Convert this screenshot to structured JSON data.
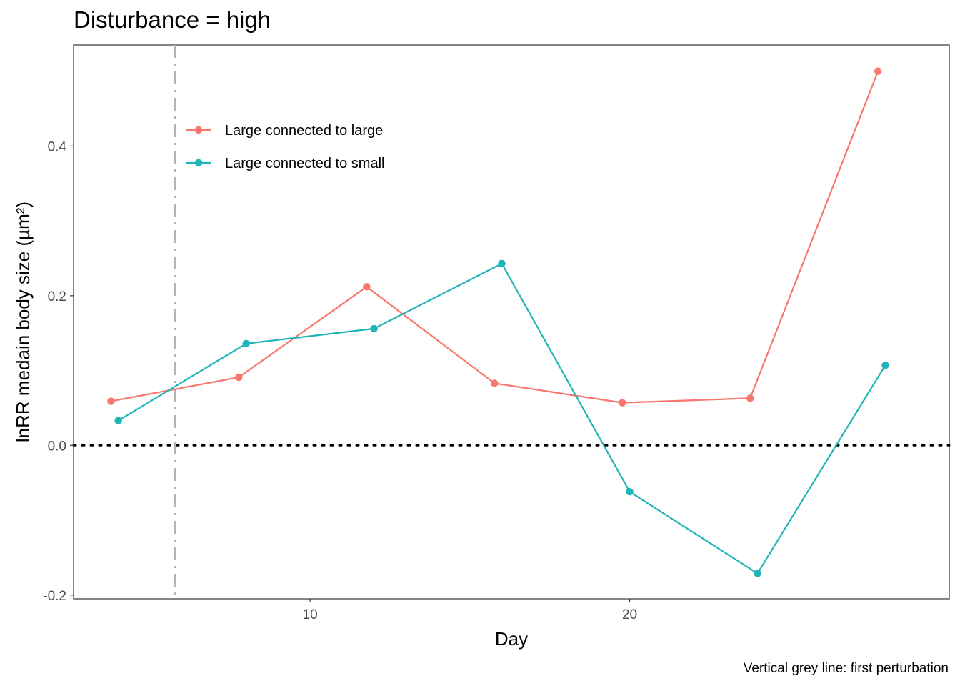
{
  "chart_data": {
    "type": "line",
    "title": "Disturbance = high",
    "xlabel": "Day",
    "ylabel": "lnRR medain body size (µm²)",
    "caption": "Vertical grey line: first perturbation",
    "xlim": [
      2.6,
      30.0
    ],
    "ylim": [
      -0.205,
      0.535
    ],
    "x_ticks": [
      10,
      20
    ],
    "x_tick_labels": [
      "10",
      "20"
    ],
    "y_ticks": [
      -0.2,
      0.0,
      0.2,
      0.4
    ],
    "y_tick_labels": [
      "-0.2",
      "0.0",
      "0.2",
      "0.4"
    ],
    "grid": false,
    "legend_position": "top-left inside",
    "reference_lines": {
      "horizontal_y": 0.0,
      "horizontal_style": "dotted",
      "horizontal_color": "#000000",
      "vertical_x": 5.77,
      "vertical_style": "dashed",
      "vertical_color": "#b3b3b3"
    },
    "series": [
      {
        "name": "Large connected to large",
        "color": "#f8766d",
        "x": [
          3.77,
          7.77,
          11.77,
          15.77,
          19.77,
          23.77,
          27.77
        ],
        "y": [
          0.059,
          0.091,
          0.212,
          0.083,
          0.057,
          0.063,
          0.5
        ]
      },
      {
        "name": "Large connected to small",
        "color": "#1fb5b8",
        "x": [
          4.0,
          8.0,
          12.0,
          16.0,
          20.0,
          24.0,
          28.0
        ],
        "y": [
          0.033,
          0.136,
          0.156,
          0.243,
          -0.062,
          -0.171,
          0.107
        ]
      }
    ]
  }
}
